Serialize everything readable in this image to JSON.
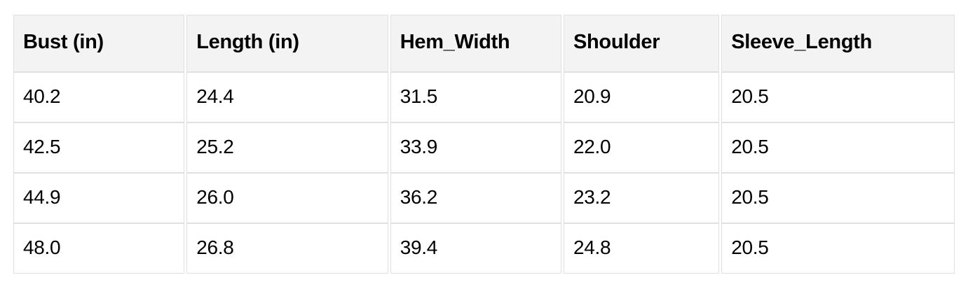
{
  "chart_data": {
    "type": "table",
    "title": "",
    "columns": [
      "Bust (in)",
      "Length (in)",
      "Hem_Width",
      "Shoulder",
      "Sleeve_Length"
    ],
    "rows": [
      [
        "40.2",
        "24.4",
        "31.5",
        "20.9",
        "20.5"
      ],
      [
        "42.5",
        "25.2",
        "33.9",
        "22.0",
        "20.5"
      ],
      [
        "44.9",
        "26.0",
        "36.2",
        "23.2",
        "20.5"
      ],
      [
        "48.0",
        "26.8",
        "39.4",
        "24.8",
        "20.5"
      ]
    ]
  },
  "colors": {
    "page_background": "#ffffff",
    "header_background": "#f3f3f3",
    "cell_background": "#ffffff",
    "border": "#e0e0e0",
    "text": "#000000"
  }
}
